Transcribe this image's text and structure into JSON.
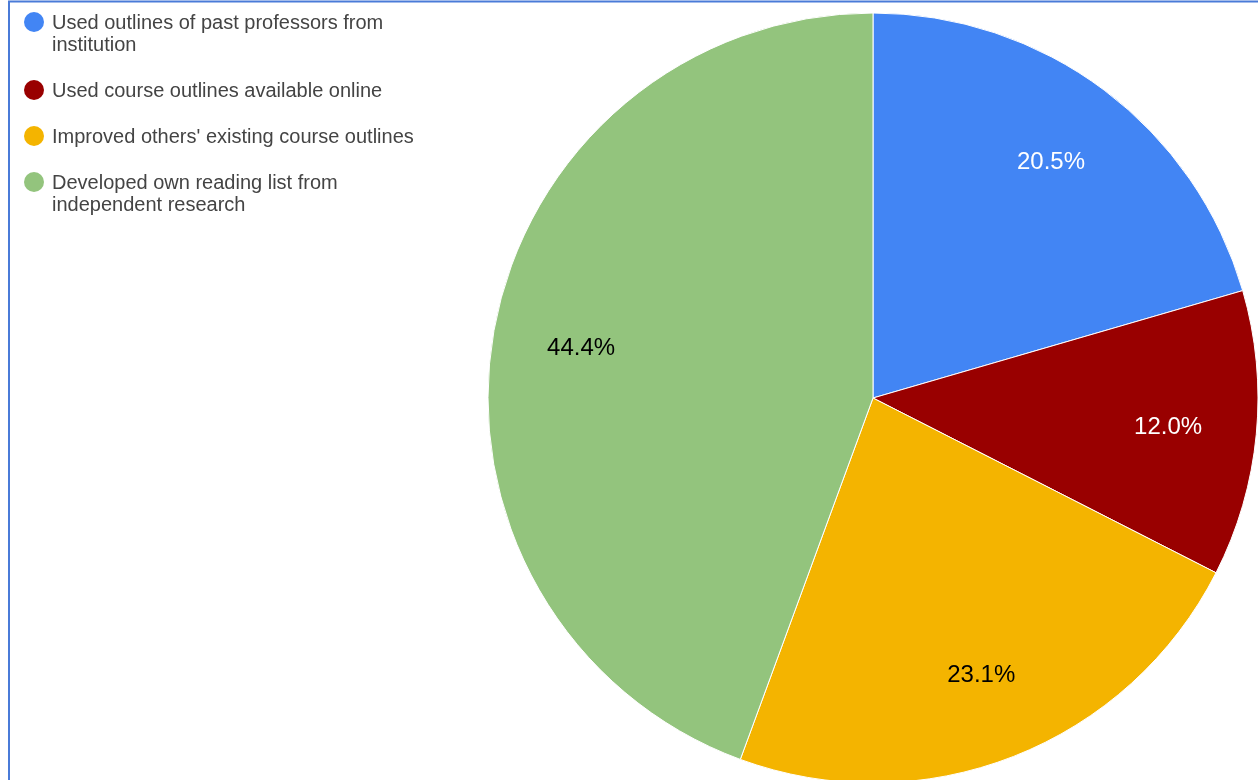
{
  "chart_data": {
    "type": "pie",
    "categories": [
      "Used outlines of past professors from institution",
      "Used course outlines available online",
      "Improved others' existing course outlines",
      "Developed own reading list from independent research"
    ],
    "values": [
      20.5,
      12.0,
      23.1,
      44.4
    ],
    "value_labels": [
      "20.5%",
      "12.0%",
      "23.1%",
      "44.4%"
    ],
    "colors": [
      "#4285f4",
      "#990000",
      "#f4b400",
      "#93c47d"
    ],
    "legend": "top left"
  }
}
